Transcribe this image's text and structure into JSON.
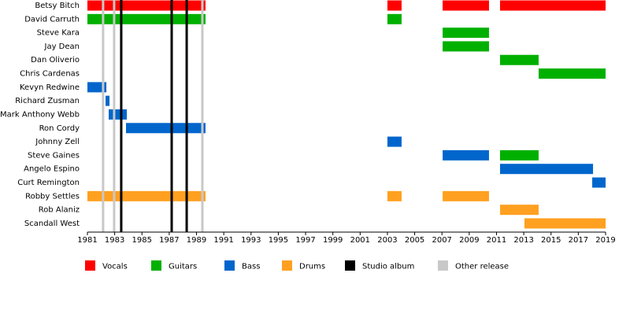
{
  "chart_data": {
    "type": "timeline",
    "categories": [
      "Betsy Bitch",
      "David Carruth",
      "Steve Kara",
      "Jay Dean",
      "Dan Oliverio",
      "Chris Cardenas",
      "Kevyn Redwine",
      "Richard Zusman",
      "Mark Anthony Webb",
      "Ron Cordy",
      "Johnny Zell",
      "Steve Gaines",
      "Angelo Espino",
      "Curt Remington",
      "Robby Settles",
      "Rob Alaniz",
      "Scandall West"
    ],
    "series": [
      {
        "name": "Vocals",
        "color": "#ff0000",
        "values": [
          [
            [
              1981,
              1989.66
            ],
            [
              2003.0,
              2004.04
            ],
            [
              2007.05,
              2010.45
            ],
            [
              2011.26,
              2019
            ]
          ],
          [],
          [],
          [],
          [],
          [],
          [],
          [],
          [],
          [],
          [],
          [],
          [],
          [],
          [],
          [],
          []
        ]
      },
      {
        "name": "Guitars",
        "color": "#00b000",
        "values": [
          [],
          [
            [
              1981,
              1989.66
            ],
            [
              2003.0,
              2004.04
            ]
          ],
          [
            [
              2007.05,
              2010.45
            ]
          ],
          [
            [
              2007.05,
              2010.45
            ]
          ],
          [
            [
              2011.26,
              2014.09
            ]
          ],
          [
            [
              2014.09,
              2019
            ]
          ],
          [],
          [],
          [],
          [],
          [],
          [
            [
              2011.26,
              2014.09
            ]
          ],
          [],
          [],
          [],
          [],
          []
        ]
      },
      {
        "name": "Bass",
        "color": "#0066cc",
        "values": [
          [],
          [],
          [],
          [],
          [],
          [],
          [
            [
              1981,
              1982.39
            ]
          ],
          [
            [
              1982.33,
              1982.62
            ]
          ],
          [
            [
              1982.56,
              1983.89
            ]
          ],
          [
            [
              1983.83,
              1989.66
            ]
          ],
          [
            [
              2003.0,
              2004.04
            ]
          ],
          [
            [
              2007.05,
              2010.45
            ]
          ],
          [
            [
              2011.26,
              2018.08
            ]
          ],
          [
            [
              2018.02,
              2019
            ]
          ],
          [],
          [],
          []
        ]
      },
      {
        "name": "Drums",
        "color": "#ffa020",
        "values": [
          [],
          [],
          [],
          [],
          [],
          [],
          [],
          [],
          [],
          [],
          [],
          [],
          [],
          [],
          [
            [
              1981,
              1989.66
            ],
            [
              2003.0,
              2004.04
            ],
            [
              2007.05,
              2010.45
            ]
          ],
          [
            [
              2011.26,
              2014.09
            ]
          ],
          [
            [
              2013.05,
              2019
            ]
          ]
        ]
      }
    ],
    "events": [
      {
        "name": "Studio album",
        "color": "#000000",
        "values": [
          1983.48,
          1987.18,
          1988.28
        ]
      },
      {
        "name": "Other release",
        "color": "#c8c8c8",
        "values": [
          1982.15,
          1982.96,
          1989.43
        ]
      }
    ],
    "xlim": [
      1981,
      2019
    ],
    "xticks": [
      1981,
      1983,
      1985,
      1987,
      1989,
      1991,
      1993,
      1995,
      1997,
      1999,
      2001,
      2003,
      2005,
      2007,
      2009,
      2011,
      2013,
      2015,
      2017,
      2019
    ]
  }
}
